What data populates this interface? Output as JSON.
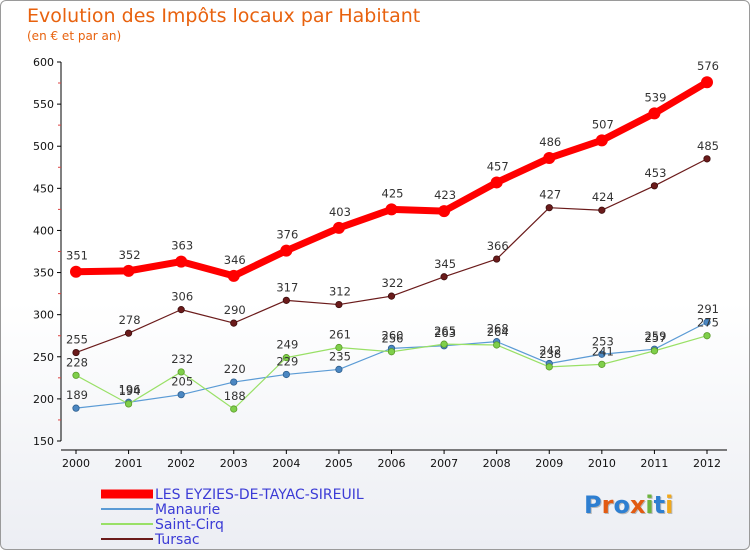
{
  "header": {
    "title": "Evolution des Impôts locaux par Habitant",
    "subtitle": "(en € et par an)"
  },
  "brand": {
    "letters": [
      "P",
      "r",
      "o",
      "x",
      "i",
      "t",
      "i"
    ],
    "colors": [
      "#2e7fd1",
      "#e25b12",
      "#2e7fd1",
      "#e25b12",
      "#6db33f",
      "#2e7fd1",
      "#f0a81c"
    ]
  },
  "chart_data": {
    "type": "line",
    "x": [
      2000,
      2001,
      2002,
      2003,
      2004,
      2005,
      2006,
      2007,
      2008,
      2009,
      2010,
      2011,
      2012
    ],
    "ylim": [
      150,
      600
    ],
    "yticks": [
      150,
      200,
      250,
      300,
      350,
      400,
      450,
      500,
      550,
      600
    ],
    "grid": false,
    "legend_position": "bottom-left",
    "series": [
      {
        "name": "LES EYZIES-DE-TAYAC-SIREUIL",
        "color": "#ff0000",
        "values": [
          351,
          352,
          363,
          346,
          376,
          403,
          425,
          423,
          457,
          486,
          507,
          539,
          576
        ]
      },
      {
        "name": "Manaurie",
        "color": "#5b9bd5",
        "values": [
          189,
          196,
          205,
          220,
          229,
          235,
          260,
          263,
          268,
          242,
          253,
          259,
          291
        ]
      },
      {
        "name": "Saint-Cirq",
        "color": "#99e066",
        "values": [
          228,
          194,
          232,
          188,
          249,
          261,
          256,
          265,
          264,
          238,
          241,
          257,
          275
        ]
      },
      {
        "name": "Tursac",
        "color": "#6b1b1b",
        "values": [
          255,
          278,
          306,
          290,
          317,
          312,
          322,
          345,
          366,
          427,
          424,
          453,
          485
        ]
      }
    ]
  }
}
